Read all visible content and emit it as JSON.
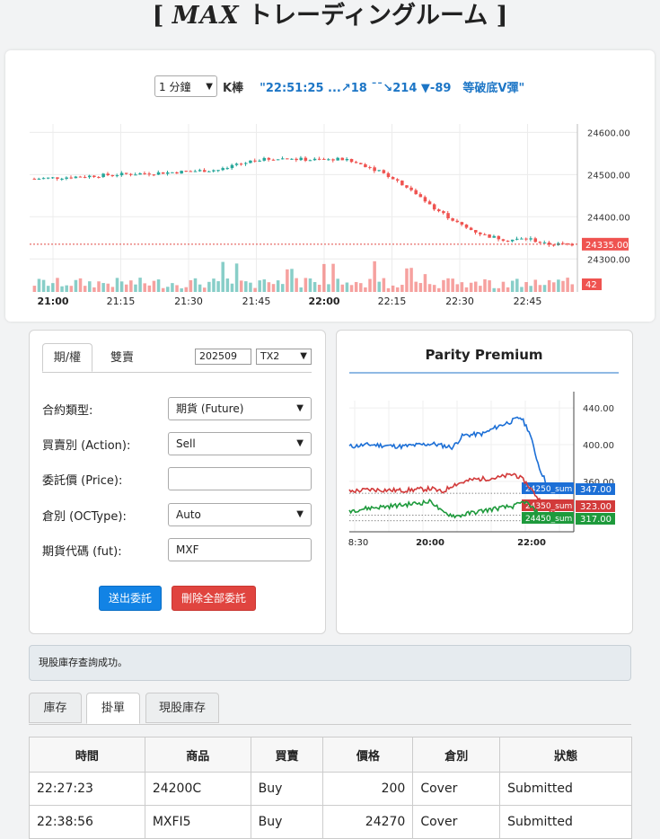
{
  "header": {
    "title_open": "[",
    "brand": "MAX",
    "title_rest": " トレーディングルーム",
    "title_close": "]"
  },
  "toolbar": {
    "interval": "1 分鐘",
    "kbar_label": "K棒",
    "signal": "\"22:51:25 ...↗18 ¯¯↘214 ▼-89　等破底V彈\""
  },
  "kchart": {
    "type": "candlestick",
    "x_tick_labels": [
      "21:00",
      "21:15",
      "21:30",
      "21:45",
      "22:00",
      "22:15",
      "22:30",
      "22:45"
    ],
    "y_tick_labels": [
      "24600.00",
      "24500.00",
      "24400.00",
      "24300.00"
    ],
    "ylim": [
      24275,
      24620
    ],
    "current_price": "24335.00",
    "volume_label": "42",
    "colors": {
      "up": "#26a69a",
      "down": "#ef5350"
    },
    "path": [
      [
        0,
        24490
      ],
      [
        0.08,
        24495
      ],
      [
        0.15,
        24500
      ],
      [
        0.25,
        24505
      ],
      [
        0.35,
        24512
      ],
      [
        0.41,
        24535
      ],
      [
        0.46,
        24538
      ],
      [
        0.52,
        24535
      ],
      [
        0.57,
        24537
      ],
      [
        0.62,
        24520
      ],
      [
        0.67,
        24490
      ],
      [
        0.71,
        24455
      ],
      [
        0.75,
        24415
      ],
      [
        0.8,
        24375
      ],
      [
        0.84,
        24355
      ],
      [
        0.88,
        24345
      ],
      [
        0.92,
        24348
      ],
      [
        0.95,
        24335
      ],
      [
        1.0,
        24335
      ]
    ]
  },
  "order_form": {
    "tabs": [
      "期/權",
      "雙賣"
    ],
    "month": "202509",
    "product": "TX2",
    "fields": [
      {
        "label": "合約類型:",
        "value": "期貨 (Future)",
        "kind": "select"
      },
      {
        "label": "買賣別 (Action):",
        "value": "Sell",
        "kind": "select"
      },
      {
        "label": "委託價 (Price):",
        "value": "",
        "kind": "input"
      },
      {
        "label": "倉別 (OCType):",
        "value": "Auto",
        "kind": "select"
      },
      {
        "label": "期貨代碼 (fut):",
        "value": "MXF",
        "kind": "input"
      }
    ],
    "submit_label": "送出委託",
    "delete_label": "刪除全部委託"
  },
  "chart_data": {
    "type": "line",
    "title": "Parity Premium",
    "x_tick_labels": [
      "8:30",
      "20:00",
      "22:00"
    ],
    "y_tick_labels": [
      "440.00",
      "400.00",
      "360.00"
    ],
    "ylim": [
      305,
      448
    ],
    "grid": true,
    "series": [
      {
        "name": "24250_sum",
        "color": "#1c6fd6",
        "last_label": "347.00",
        "points": [
          [
            0,
            398
          ],
          [
            0.1,
            400
          ],
          [
            0.25,
            398
          ],
          [
            0.4,
            401
          ],
          [
            0.5,
            397
          ],
          [
            0.55,
            410
          ],
          [
            0.65,
            412
          ],
          [
            0.72,
            420
          ],
          [
            0.78,
            425
          ],
          [
            0.83,
            430
          ],
          [
            0.87,
            415
          ],
          [
            0.92,
            375
          ],
          [
            0.96,
            355
          ],
          [
            1.0,
            347
          ]
        ]
      },
      {
        "name": "24350_sum",
        "color": "#d23a3a",
        "last_label": "323.00",
        "points": [
          [
            0,
            349
          ],
          [
            0.1,
            351
          ],
          [
            0.25,
            350
          ],
          [
            0.4,
            352
          ],
          [
            0.45,
            348
          ],
          [
            0.5,
            356
          ],
          [
            0.6,
            362
          ],
          [
            0.72,
            364
          ],
          [
            0.8,
            368
          ],
          [
            0.85,
            360
          ],
          [
            0.92,
            340
          ],
          [
            0.96,
            330
          ],
          [
            1.0,
            323
          ]
        ]
      },
      {
        "name": "24450_sum",
        "color": "#1e9a3c",
        "last_label": "317.00",
        "points": [
          [
            0,
            328
          ],
          [
            0.1,
            331
          ],
          [
            0.25,
            334
          ],
          [
            0.4,
            338
          ],
          [
            0.45,
            326
          ],
          [
            0.52,
            322
          ],
          [
            0.6,
            326
          ],
          [
            0.7,
            330
          ],
          [
            0.8,
            333
          ],
          [
            0.85,
            338
          ],
          [
            0.92,
            324
          ],
          [
            0.96,
            318
          ],
          [
            1.0,
            317
          ]
        ]
      }
    ]
  },
  "status": {
    "message": "現股庫存查詢成功。"
  },
  "bottom_tabs": [
    "庫存",
    "掛單",
    "現股庫存"
  ],
  "orders_table": {
    "columns": [
      "時間",
      "商品",
      "買賣",
      "價格",
      "倉別",
      "狀態"
    ],
    "rows": [
      [
        "22:27:23",
        "24200C",
        "Buy",
        "200",
        "Cover",
        "Submitted"
      ],
      [
        "22:38:56",
        "MXFI5",
        "Buy",
        "24270",
        "Cover",
        "Submitted"
      ]
    ]
  }
}
